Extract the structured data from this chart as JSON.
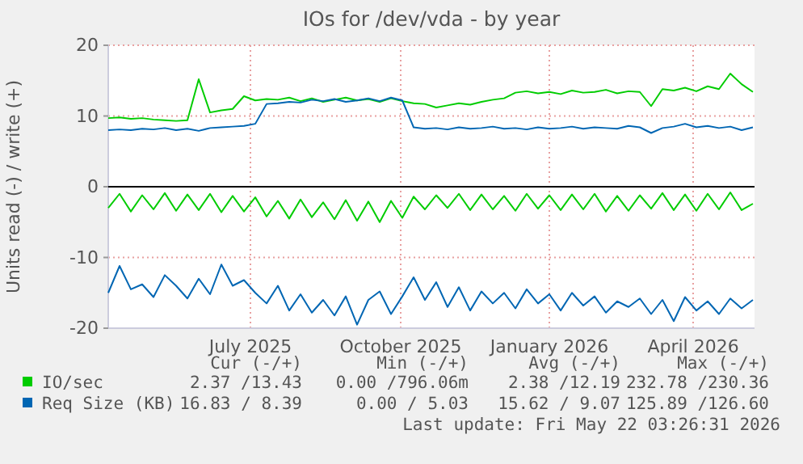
{
  "chart_data": {
    "type": "line",
    "title": "IOs for /dev/vda - by year",
    "ylabel": "Units read (-) / write (+)",
    "x": [
      "2025-04-17",
      "2025-04-24",
      "2025-05-01",
      "2025-05-08",
      "2025-05-15",
      "2025-05-22",
      "2025-05-29",
      "2025-06-05",
      "2025-06-12",
      "2025-06-19",
      "2025-06-26",
      "2025-07-03",
      "2025-07-10",
      "2025-07-17",
      "2025-07-24",
      "2025-07-31",
      "2025-08-07",
      "2025-08-14",
      "2025-08-21",
      "2025-08-28",
      "2025-09-04",
      "2025-09-11",
      "2025-09-18",
      "2025-09-25",
      "2025-10-02",
      "2025-10-09",
      "2025-10-16",
      "2025-10-23",
      "2025-10-30",
      "2025-11-06",
      "2025-11-13",
      "2025-11-20",
      "2025-11-27",
      "2025-12-04",
      "2025-12-11",
      "2025-12-18",
      "2025-12-25",
      "2026-01-01",
      "2026-01-08",
      "2026-01-15",
      "2026-01-22",
      "2026-01-29",
      "2026-02-05",
      "2026-02-12",
      "2026-02-19",
      "2026-02-26",
      "2026-03-05",
      "2026-03-12",
      "2026-03-19",
      "2026-03-26",
      "2026-04-02",
      "2026-04-09",
      "2026-04-16",
      "2026-04-23",
      "2026-04-30",
      "2026-05-07",
      "2026-05-14",
      "2026-05-21"
    ],
    "series": [
      {
        "name": "IO/sec",
        "color": "#00cc00",
        "values": [
          9.7,
          9.8,
          9.6,
          9.7,
          9.5,
          9.4,
          9.3,
          9.4,
          15.2,
          10.5,
          10.8,
          11.0,
          12.8,
          12.2,
          12.4,
          12.3,
          12.6,
          12.1,
          12.5,
          12.0,
          12.3,
          12.6,
          12.2,
          12.4,
          12.0,
          12.5,
          12.1,
          11.8,
          11.7,
          11.2,
          11.5,
          11.8,
          11.6,
          12.0,
          12.3,
          12.5,
          13.3,
          13.5,
          13.2,
          13.4,
          13.1,
          13.6,
          13.3,
          13.4,
          13.7,
          13.2,
          13.5,
          13.4,
          11.4,
          13.8,
          13.6,
          14.0,
          13.5,
          14.2,
          13.8,
          16.0,
          14.5,
          13.4
        ]
      },
      {
        "name": "Req Size (KB)",
        "color": "#0066b3",
        "values": [
          8.0,
          8.1,
          8.0,
          8.2,
          8.1,
          8.3,
          8.0,
          8.2,
          7.9,
          8.3,
          8.4,
          8.5,
          8.6,
          8.9,
          11.7,
          11.8,
          12.0,
          11.9,
          12.3,
          12.1,
          12.4,
          12.0,
          12.2,
          12.5,
          12.1,
          12.6,
          12.2,
          8.4,
          8.2,
          8.3,
          8.1,
          8.4,
          8.2,
          8.3,
          8.5,
          8.2,
          8.3,
          8.1,
          8.4,
          8.2,
          8.3,
          8.5,
          8.2,
          8.4,
          8.3,
          8.2,
          8.6,
          8.4,
          7.6,
          8.3,
          8.5,
          8.9,
          8.4,
          8.6,
          8.3,
          8.5,
          8.0,
          8.4
        ]
      },
      {
        "color": "#00cc00",
        "values": [
          -3.0,
          -1.0,
          -3.5,
          -1.2,
          -3.2,
          -0.9,
          -3.4,
          -1.1,
          -3.3,
          -1.0,
          -3.6,
          -1.3,
          -3.5,
          -1.5,
          -4.2,
          -2.0,
          -4.5,
          -1.8,
          -4.3,
          -2.2,
          -4.6,
          -1.9,
          -4.8,
          -2.1,
          -5.0,
          -2.0,
          -4.4,
          -1.4,
          -3.2,
          -1.2,
          -3.0,
          -1.0,
          -3.3,
          -1.1,
          -3.2,
          -1.3,
          -3.4,
          -1.0,
          -3.1,
          -1.2,
          -3.3,
          -1.1,
          -3.2,
          -1.0,
          -3.5,
          -1.3,
          -3.4,
          -1.2,
          -3.1,
          -0.9,
          -3.3,
          -1.1,
          -3.4,
          -1.0,
          -3.2,
          -0.8,
          -3.3,
          -2.4
        ]
      },
      {
        "color": "#0066b3",
        "values": [
          -15.0,
          -11.2,
          -14.5,
          -13.8,
          -15.6,
          -12.5,
          -14.0,
          -15.8,
          -13.0,
          -15.2,
          -11.0,
          -14.0,
          -13.2,
          -15.0,
          -16.5,
          -14.0,
          -17.5,
          -15.2,
          -17.8,
          -16.0,
          -18.2,
          -15.5,
          -19.5,
          -16.0,
          -14.8,
          -18.0,
          -15.5,
          -12.8,
          -16.0,
          -13.5,
          -17.0,
          -14.2,
          -17.5,
          -14.8,
          -16.5,
          -15.0,
          -17.2,
          -14.5,
          -16.5,
          -15.2,
          -17.5,
          -15.0,
          -16.8,
          -15.5,
          -17.8,
          -16.2,
          -17.0,
          -15.8,
          -18.0,
          -16.0,
          -19.0,
          -15.6,
          -17.5,
          -16.2,
          -18.0,
          -15.8,
          -17.2,
          -16.0
        ]
      }
    ],
    "xlim": [
      "2025-04-17",
      "2026-05-22"
    ],
    "xticks": [
      {
        "value": "2025-07-14",
        "label": "July 2025"
      },
      {
        "value": "2025-10-15",
        "label": "October 2025"
      },
      {
        "value": "2026-01-15",
        "label": "January 2026"
      },
      {
        "value": "2026-04-14",
        "label": "April 2026"
      }
    ],
    "ylim": [
      -20,
      20
    ],
    "yticks": [
      -20,
      -10,
      0,
      10,
      20
    ],
    "grid": true,
    "legend": "bottom",
    "line_style": "solid",
    "marker": "none",
    "ref_lines": [
      {
        "axis": "y",
        "value": 0,
        "color": "#000000"
      }
    ],
    "annotations": [
      "Cur (-/+)",
      "Min (-/+)",
      "Avg (-/+)",
      "Max (-/+)",
      "2.37 /13.43",
      "0.00 /796.06m",
      "2.38 /12.19",
      "232.78 /230.36",
      "16.83 / 8.39",
      "0.00 / 5.03",
      "15.62 / 9.07",
      "125.89 /126.60",
      "Last update: Fri May 22 03:26:31 2026"
    ]
  }
}
